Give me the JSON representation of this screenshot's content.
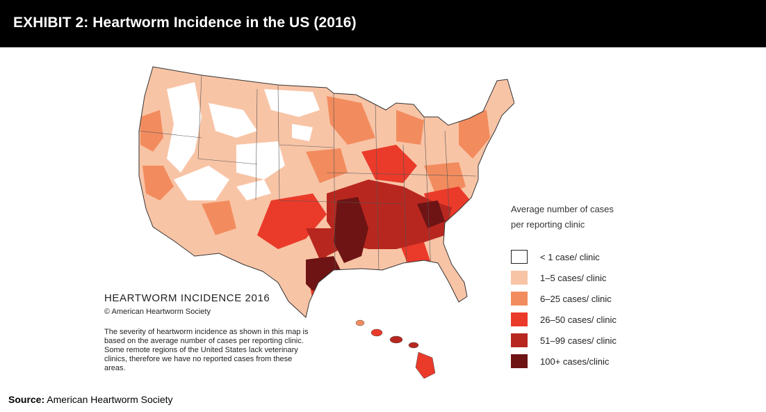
{
  "header": {
    "title": "EXHIBIT 2: Heartworm Incidence in the US (2016)"
  },
  "map": {
    "title": "HEARTWORM INCIDENCE 2016",
    "copyright": "© American Heartworm Society",
    "note": "The severity of heartworm incidence as shown in this map is based on the average number of cases per reporting clinic.  Some remote regions of the United States lack veterinary clinics, therefore we have no reported cases from these areas."
  },
  "legend": {
    "title": "Average number of cases per reporting clinic",
    "items": [
      {
        "label": "< 1 case/ clinic",
        "color": "#ffffff"
      },
      {
        "label": "1–5 cases/ clinic",
        "color": "#f8c4a6"
      },
      {
        "label": "6–25  cases/ clinic",
        "color": "#f28c5e"
      },
      {
        "label": "26–50  cases/ clinic",
        "color": "#ea3a2a"
      },
      {
        "label": "51–99 cases/ clinic",
        "color": "#b8271f"
      },
      {
        "label": "100+ cases/clinic",
        "color": "#6e1414"
      }
    ]
  },
  "source": {
    "label": "Source:",
    "text": "American Heartworm Society"
  }
}
